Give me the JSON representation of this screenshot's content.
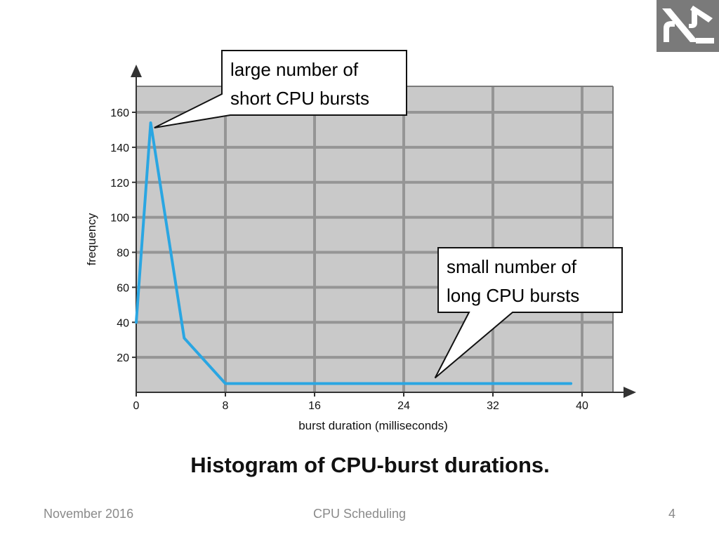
{
  "chart_data": {
    "type": "line",
    "title": "Histogram of CPU-burst durations.",
    "xlabel": "burst duration (milliseconds)",
    "ylabel": "frequency",
    "xlim": [
      0,
      42
    ],
    "ylim": [
      0,
      176
    ],
    "xticks": [
      0,
      8,
      16,
      24,
      32,
      40
    ],
    "yticks": [
      20,
      40,
      60,
      80,
      100,
      120,
      140,
      160
    ],
    "grid": true,
    "series": [
      {
        "name": "",
        "x": [
          0,
          1.3,
          4.3,
          8,
          39
        ],
        "y": [
          40,
          154,
          31,
          5,
          5
        ]
      }
    ],
    "annotations": [
      {
        "line1": "large number of",
        "line2": "short CPU bursts",
        "target": [
          2,
          152
        ]
      },
      {
        "line1": "small number of",
        "line2": "long CPU bursts",
        "target": [
          27,
          7
        ]
      }
    ],
    "colors": {
      "line": "#2aa6e2",
      "plot_bg": "#c9c9c9",
      "grid": "#959595"
    }
  },
  "footer": {
    "date": "November 2016",
    "title": "CPU Scheduling",
    "page": "4"
  },
  "logo": {
    "icon": "hebrew-university-logo-icon"
  }
}
